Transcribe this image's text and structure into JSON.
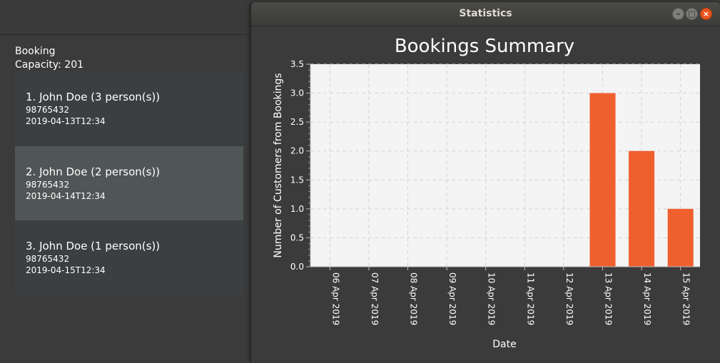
{
  "booking_panel": {
    "title": "Booking",
    "capacity": "Capacity: 201",
    "items": [
      {
        "label": "1.  John Doe (3 person(s))",
        "phone": "98765432",
        "datetime": "2019-04-13T12:34",
        "selected": false
      },
      {
        "label": "2.  John Doe (2 person(s))",
        "phone": "98765432",
        "datetime": "2019-04-14T12:34",
        "selected": true
      },
      {
        "label": "3.  John Doe (1 person(s))",
        "phone": "98765432",
        "datetime": "2019-04-15T12:34",
        "selected": false
      }
    ]
  },
  "window": {
    "title": "Statistics",
    "buttons": {
      "minimize": "–",
      "maximize": "□",
      "close": "×"
    }
  },
  "colors": {
    "bar": "#f05f2e",
    "plot_bg": "#f4f4f4",
    "grid": "#d4d4d4",
    "text": "#ffffff",
    "selected_row": "#505556",
    "close_button": "#e8541e"
  },
  "chart_data": {
    "type": "bar",
    "title": "Bookings Summary",
    "xlabel": "Date",
    "ylabel": "Number of Customers from Bookings",
    "categories": [
      "06 Apr 2019",
      "07 Apr 2019",
      "08 Apr 2019",
      "09 Apr 2019",
      "10 Apr 2019",
      "11 Apr 2019",
      "12 Apr 2019",
      "13 Apr 2019",
      "14 Apr 2019",
      "15 Apr 2019"
    ],
    "values": [
      0,
      0,
      0,
      0,
      0,
      0,
      0,
      3,
      2,
      1
    ],
    "ylim": [
      0,
      3.5
    ],
    "yticks": [
      "0.0",
      "0.5",
      "1.0",
      "1.5",
      "2.0",
      "2.5",
      "3.0",
      "3.5"
    ],
    "grid": true,
    "legend": "none"
  }
}
